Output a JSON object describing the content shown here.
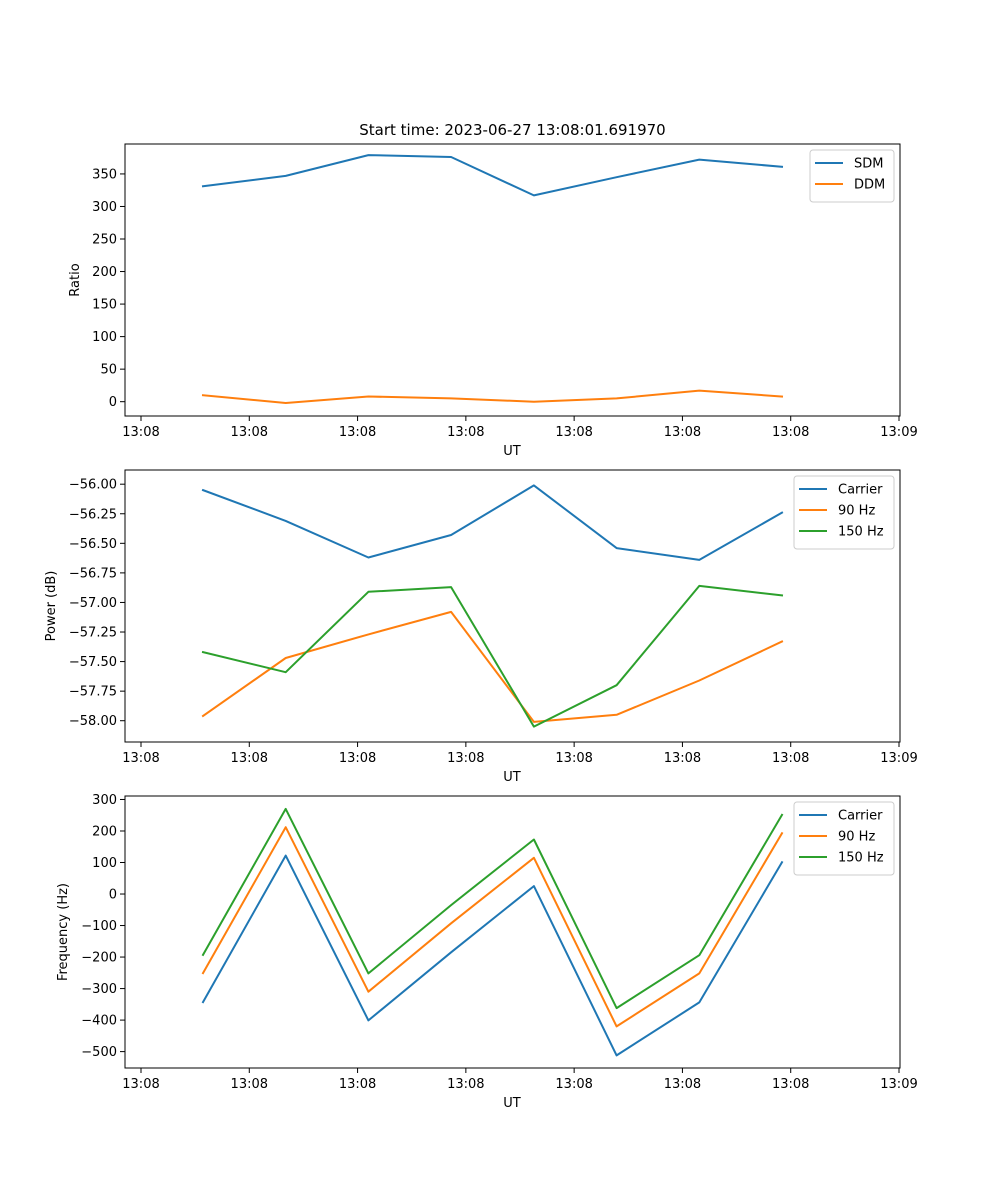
{
  "chart_data": [
    {
      "type": "line",
      "title": "Start time: 2023-06-27 13:08:01.691970",
      "xlabel": "UT",
      "ylabel": "Ratio",
      "x_tick_labels": [
        "13:08",
        "13:08",
        "13:08",
        "13:08",
        "13:08",
        "13:08",
        "13:08",
        "13:09"
      ],
      "y_ticks": [
        0,
        50,
        100,
        150,
        200,
        250,
        300,
        350
      ],
      "ylim": [
        -22,
        396
      ],
      "grid": false,
      "legend_position": "top-right",
      "series": [
        {
          "name": "SDM",
          "color": "#1f77b4",
          "values": [
            331,
            347,
            379,
            376,
            317,
            345,
            372,
            361
          ]
        },
        {
          "name": "DDM",
          "color": "#ff7f0e",
          "values": [
            10,
            -2,
            8,
            5,
            0,
            5,
            17,
            8
          ]
        }
      ]
    },
    {
      "type": "line",
      "title": "",
      "xlabel": "UT",
      "ylabel": "Power (dB)",
      "x_tick_labels": [
        "13:08",
        "13:08",
        "13:08",
        "13:08",
        "13:08",
        "13:08",
        "13:08",
        "13:09"
      ],
      "y_ticks": [
        -58.0,
        -57.75,
        -57.5,
        -57.25,
        -57.0,
        -56.75,
        -56.5,
        -56.25,
        -56.0
      ],
      "y_tick_labels": [
        "−58.00",
        "−57.75",
        "−57.50",
        "−57.25",
        "−57.00",
        "−56.75",
        "−56.50",
        "−56.25",
        "−56.00"
      ],
      "ylim": [
        -58.18,
        -55.88
      ],
      "grid": false,
      "legend_position": "top-right",
      "series": [
        {
          "name": "Carrier",
          "color": "#1f77b4",
          "values": [
            -56.05,
            -56.31,
            -56.62,
            -56.43,
            -56.01,
            -56.54,
            -56.64,
            -56.24
          ]
        },
        {
          "name": "90 Hz",
          "color": "#ff7f0e",
          "values": [
            -57.96,
            -57.47,
            -57.27,
            -57.08,
            -58.01,
            -57.95,
            -57.66,
            -57.33
          ]
        },
        {
          "name": "150 Hz",
          "color": "#2ca02c",
          "values": [
            -57.42,
            -57.59,
            -56.91,
            -56.87,
            -58.05,
            -57.7,
            -56.86,
            -56.94
          ]
        }
      ]
    },
    {
      "type": "line",
      "title": "",
      "xlabel": "UT",
      "ylabel": "Frequency (Hz)",
      "x_tick_labels": [
        "13:08",
        "13:08",
        "13:08",
        "13:08",
        "13:08",
        "13:08",
        "13:08",
        "13:09"
      ],
      "y_ticks": [
        -500,
        -400,
        -300,
        -200,
        -100,
        0,
        100,
        200,
        300
      ],
      "y_tick_labels": [
        "−500",
        "−400",
        "−300",
        "−200",
        "−100",
        "0",
        "100",
        "200",
        "300"
      ],
      "ylim": [
        -552,
        311
      ],
      "grid": false,
      "legend_position": "top-right",
      "series": [
        {
          "name": "Carrier",
          "color": "#1f77b4",
          "values": [
            -343,
            122,
            -401,
            -185,
            25,
            -512,
            -344,
            101
          ]
        },
        {
          "name": "90 Hz",
          "color": "#ff7f0e",
          "values": [
            -251,
            212,
            -310,
            -93,
            115,
            -420,
            -252,
            193
          ]
        },
        {
          "name": "150 Hz",
          "color": "#2ca02c",
          "values": [
            -193,
            270,
            -252,
            -35,
            173,
            -362,
            -194,
            251
          ]
        }
      ]
    }
  ]
}
